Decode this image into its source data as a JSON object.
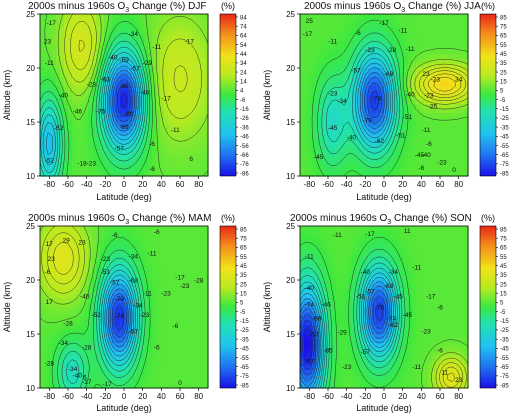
{
  "chart_data": [
    {
      "type": "heatmap",
      "title_pre": "2000s minus 1960s O",
      "title_sub": "3",
      "title_post": " Change (%) DJF",
      "xlabel": "Latitude (deg)",
      "ylabel": "Altitude (km)",
      "xlim": [
        -90,
        90
      ],
      "ylim": [
        10,
        25
      ],
      "xticks": [
        -80,
        -60,
        -40,
        -20,
        0,
        20,
        40,
        60,
        80
      ],
      "yticks": [
        10,
        15,
        20,
        25
      ],
      "colorbar": {
        "unit": "(%)",
        "ticks": [
          "84",
          "74",
          "64",
          "54",
          "44",
          "34",
          "24",
          "14",
          "4",
          "-6",
          "-16",
          "-26",
          "-36",
          "-46",
          "-56",
          "-66",
          "-76",
          "-86"
        ]
      },
      "features": [
        {
          "x": 0,
          "y": 17,
          "value": -88,
          "sx": 16,
          "sy": 3.2
        },
        {
          "x": -80,
          "y": 13,
          "value": -52,
          "sx": 10,
          "sy": 3
        },
        {
          "x": -45,
          "y": 22,
          "value": 18,
          "sx": 16,
          "sy": 3
        },
        {
          "x": 60,
          "y": 19,
          "value": 12,
          "sx": 25,
          "sy": 4
        }
      ],
      "contour_labels": [
        {
          "x": -78,
          "y": 24.2,
          "text": "-17"
        },
        {
          "x": -82,
          "y": 22.5,
          "text": "23"
        },
        {
          "x": -80,
          "y": 20.5,
          "text": "-11"
        },
        {
          "x": -12,
          "y": 21,
          "text": "-40"
        },
        {
          "x": 10,
          "y": 23.2,
          "text": "-34"
        },
        {
          "x": 0,
          "y": 20.8,
          "text": "-69"
        },
        {
          "x": 12,
          "y": 20,
          "text": "-57"
        },
        {
          "x": 25,
          "y": 20.5,
          "text": "-29"
        },
        {
          "x": 35,
          "y": 22,
          "text": "-11"
        },
        {
          "x": 70,
          "y": 22.5,
          "text": "-17"
        },
        {
          "x": -20,
          "y": 19,
          "text": "-63"
        },
        {
          "x": -35,
          "y": 18.5,
          "text": "-23"
        },
        {
          "x": -65,
          "y": 17.5,
          "text": "-40"
        },
        {
          "x": 0,
          "y": 18.4,
          "text": "-86"
        },
        {
          "x": 22,
          "y": 17.8,
          "text": "-46"
        },
        {
          "x": -50,
          "y": 16,
          "text": "-46"
        },
        {
          "x": -25,
          "y": 16,
          "text": "-75"
        },
        {
          "x": 5,
          "y": 15.8,
          "text": "-80"
        },
        {
          "x": 45,
          "y": 17.2,
          "text": "-17"
        },
        {
          "x": -70,
          "y": 14.5,
          "text": "-52"
        },
        {
          "x": 0,
          "y": 14.6,
          "text": "-69"
        },
        {
          "x": 55,
          "y": 14.3,
          "text": "-11"
        },
        {
          "x": -5,
          "y": 12.6,
          "text": "-57"
        },
        {
          "x": 30,
          "y": 13,
          "text": "-6"
        },
        {
          "x": -80,
          "y": 11.5,
          "text": "-52"
        },
        {
          "x": -45,
          "y": 11.2,
          "text": "-18"
        },
        {
          "x": -35,
          "y": 11.2,
          "text": "-23"
        },
        {
          "x": 30,
          "y": 10.7,
          "text": "-6"
        },
        {
          "x": 72,
          "y": 11.6,
          "text": "6"
        }
      ]
    },
    {
      "type": "heatmap",
      "title_pre": "2000s minus 1960s O",
      "title_sub": "3",
      "title_post": " Change (%) JJA",
      "xlabel": "Latitude (deg)",
      "ylabel": "Altitude (km)",
      "xlim": [
        -90,
        90
      ],
      "ylim": [
        10,
        25
      ],
      "xticks": [
        -80,
        -60,
        -40,
        -20,
        0,
        20,
        40,
        60,
        80
      ],
      "yticks": [
        10,
        15,
        20,
        25
      ],
      "colorbar": {
        "unit": "(%)",
        "ticks": [
          "85",
          "75",
          "65",
          "55",
          "45",
          "35",
          "25",
          "15",
          "5",
          "-5",
          "-15",
          "-25",
          "-35",
          "-45",
          "-55",
          "-65",
          "-75",
          "-85"
        ]
      },
      "features": [
        {
          "x": -10,
          "y": 17,
          "value": -82,
          "sx": 16,
          "sy": 3.2
        },
        {
          "x": 65,
          "y": 18.5,
          "value": 35,
          "sx": 22,
          "sy": 1.2
        },
        {
          "x": -55,
          "y": 15,
          "value": -35,
          "sx": 12,
          "sy": 3
        }
      ],
      "contour_labels": [
        {
          "x": -80,
          "y": 24.4,
          "text": "25"
        },
        {
          "x": -82,
          "y": 23.2,
          "text": "-17"
        },
        {
          "x": -28,
          "y": 23.3,
          "text": "-6"
        },
        {
          "x": 0,
          "y": 24.2,
          "text": "-17"
        },
        {
          "x": 20,
          "y": 23.5,
          "text": "-11"
        },
        {
          "x": -55,
          "y": 22.5,
          "text": "-11"
        },
        {
          "x": -15,
          "y": 21.7,
          "text": "-23"
        },
        {
          "x": 8,
          "y": 21.7,
          "text": "-28"
        },
        {
          "x": 28,
          "y": 21.8,
          "text": "-11"
        },
        {
          "x": -30,
          "y": 19.8,
          "text": "-57"
        },
        {
          "x": 5,
          "y": 19.5,
          "text": "-68"
        },
        {
          "x": 45,
          "y": 19.5,
          "text": "23"
        },
        {
          "x": 55,
          "y": 19,
          "text": "-23"
        },
        {
          "x": 80,
          "y": 19,
          "text": "34"
        },
        {
          "x": -55,
          "y": 17.7,
          "text": "-23"
        },
        {
          "x": -45,
          "y": 17,
          "text": "-34"
        },
        {
          "x": -8,
          "y": 17.2,
          "text": "-74"
        },
        {
          "x": 28,
          "y": 17.6,
          "text": "-40"
        },
        {
          "x": 48,
          "y": 17.5,
          "text": "-23"
        },
        {
          "x": 52,
          "y": 16.5,
          "text": "-25"
        },
        {
          "x": -18,
          "y": 15.2,
          "text": "-79"
        },
        {
          "x": 25,
          "y": 15.5,
          "text": "-51"
        },
        {
          "x": -55,
          "y": 14.5,
          "text": "-45"
        },
        {
          "x": -35,
          "y": 13.6,
          "text": "-40"
        },
        {
          "x": 45,
          "y": 14.3,
          "text": "-11"
        },
        {
          "x": -5,
          "y": 13.3,
          "text": "-62"
        },
        {
          "x": 18,
          "y": 13.8,
          "text": "-51"
        },
        {
          "x": 48,
          "y": 13,
          "text": "-6"
        },
        {
          "x": 38,
          "y": 12,
          "text": "-45"
        },
        {
          "x": 45,
          "y": 12,
          "text": "-40"
        },
        {
          "x": -70,
          "y": 11.8,
          "text": "-45"
        },
        {
          "x": 62,
          "y": 11.3,
          "text": "-23"
        },
        {
          "x": 40,
          "y": 10.8,
          "text": "-6"
        },
        {
          "x": 75,
          "y": 10.6,
          "text": "0"
        }
      ]
    },
    {
      "type": "heatmap",
      "title_pre": "2000s minus 1960s O",
      "title_sub": "3",
      "title_post": " Change (%) MAM",
      "xlabel": "Latitude (deg)",
      "ylabel": "Altitude (km)",
      "xlim": [
        -90,
        90
      ],
      "ylim": [
        10,
        25
      ],
      "xticks": [
        -80,
        -60,
        -40,
        -20,
        0,
        20,
        40,
        60,
        80
      ],
      "yticks": [
        10,
        15,
        20,
        25
      ],
      "colorbar": {
        "unit": "(%)",
        "ticks": [
          "85",
          "75",
          "65",
          "55",
          "45",
          "35",
          "25",
          "15",
          "5",
          "-5",
          "-15",
          "-25",
          "-35",
          "-45",
          "-55",
          "-65",
          "-75",
          "-85"
        ]
      },
      "features": [
        {
          "x": -5,
          "y": 16.5,
          "value": -84,
          "sx": 14,
          "sy": 3.2
        },
        {
          "x": -65,
          "y": 22,
          "value": 22,
          "sx": 18,
          "sy": 2.5
        },
        {
          "x": -55,
          "y": 11.5,
          "value": -35,
          "sx": 12,
          "sy": 2
        }
      ],
      "contour_labels": [
        {
          "x": -80,
          "y": 23.4,
          "text": "17"
        },
        {
          "x": -62,
          "y": 23.7,
          "text": "29"
        },
        {
          "x": -45,
          "y": 23.5,
          "text": "23"
        },
        {
          "x": -10,
          "y": 24.2,
          "text": "-6"
        },
        {
          "x": 35,
          "y": 24.5,
          "text": "-6"
        },
        {
          "x": -78,
          "y": 22,
          "text": "23"
        },
        {
          "x": -20,
          "y": 22,
          "text": "-23"
        },
        {
          "x": 10,
          "y": 22.2,
          "text": "-34"
        },
        {
          "x": 30,
          "y": 22.5,
          "text": "-11"
        },
        {
          "x": -82,
          "y": 20.8,
          "text": "-6"
        },
        {
          "x": -20,
          "y": 20.8,
          "text": "-51"
        },
        {
          "x": -10,
          "y": 19.8,
          "text": "-57"
        },
        {
          "x": 10,
          "y": 20,
          "text": "-68"
        },
        {
          "x": 60,
          "y": 20.3,
          "text": "-17"
        },
        {
          "x": 65,
          "y": 19.5,
          "text": "-23"
        },
        {
          "x": 80,
          "y": 20,
          "text": "-28"
        },
        {
          "x": -80,
          "y": 18,
          "text": "17"
        },
        {
          "x": -42,
          "y": 18.5,
          "text": "-40"
        },
        {
          "x": -5,
          "y": 18.3,
          "text": "-79"
        },
        {
          "x": 25,
          "y": 18.8,
          "text": "-11"
        },
        {
          "x": 45,
          "y": 18.8,
          "text": "-23"
        },
        {
          "x": -30,
          "y": 16.8,
          "text": "-52"
        },
        {
          "x": -5,
          "y": 16.7,
          "text": "-74"
        },
        {
          "x": 15,
          "y": 17.7,
          "text": "-34"
        },
        {
          "x": 22,
          "y": 16.8,
          "text": "-23"
        },
        {
          "x": -60,
          "y": 16,
          "text": "-28"
        },
        {
          "x": 10,
          "y": 15.3,
          "text": "-57"
        },
        {
          "x": 55,
          "y": 15.8,
          "text": "-6"
        },
        {
          "x": -65,
          "y": 14.2,
          "text": "-34"
        },
        {
          "x": -40,
          "y": 13.8,
          "text": "-28"
        },
        {
          "x": 35,
          "y": 13.8,
          "text": "-6"
        },
        {
          "x": -80,
          "y": 12.3,
          "text": "-28"
        },
        {
          "x": -55,
          "y": 11.8,
          "text": "-34"
        },
        {
          "x": -50,
          "y": 11.2,
          "text": "-40"
        },
        {
          "x": -42,
          "y": 11,
          "text": "6"
        },
        {
          "x": -40,
          "y": 10.6,
          "text": "-17"
        },
        {
          "x": -18,
          "y": 10.4,
          "text": "-17"
        },
        {
          "x": 60,
          "y": 10.5,
          "text": "0"
        }
      ]
    },
    {
      "type": "heatmap",
      "title_pre": "2000s minus 1960s O",
      "title_sub": "3",
      "title_post": " Change (%)  SON",
      "xlabel": "Latitude (deg)",
      "ylabel": "Altitude (km)",
      "xlim": [
        -90,
        90
      ],
      "ylim": [
        10,
        25
      ],
      "xticks": [
        -80,
        -60,
        -40,
        -20,
        0,
        20,
        40,
        60,
        80
      ],
      "yticks": [
        10,
        15,
        20,
        25
      ],
      "colorbar": {
        "unit": "(%)",
        "ticks": [
          "85",
          "75",
          "65",
          "55",
          "45",
          "35",
          "25",
          "15",
          "5",
          "-5",
          "-15",
          "-25",
          "-35",
          "-45",
          "-55",
          "-65",
          "-75",
          "-85"
        ]
      },
      "features": [
        {
          "x": -82,
          "y": 14,
          "value": -92,
          "sx": 13,
          "sy": 4
        },
        {
          "x": -5,
          "y": 17,
          "value": -82,
          "sx": 14,
          "sy": 3
        },
        {
          "x": 72,
          "y": 11,
          "value": 25,
          "sx": 12,
          "sy": 1.3
        }
      ],
      "contour_labels": [
        {
          "x": -80,
          "y": 22.2,
          "text": "-11"
        },
        {
          "x": -50,
          "y": 24.2,
          "text": "-11"
        },
        {
          "x": -15,
          "y": 24.3,
          "text": "-17"
        },
        {
          "x": 25,
          "y": 24.6,
          "text": "11"
        },
        {
          "x": -20,
          "y": 20.8,
          "text": "-40"
        },
        {
          "x": 10,
          "y": 20.8,
          "text": "-34"
        },
        {
          "x": 35,
          "y": 21.2,
          "text": "-11"
        },
        {
          "x": -80,
          "y": 19.3,
          "text": "-40"
        },
        {
          "x": -15,
          "y": 19,
          "text": "-57"
        },
        {
          "x": 5,
          "y": 19.5,
          "text": "-68"
        },
        {
          "x": -25,
          "y": 18.5,
          "text": "-51"
        },
        {
          "x": 15,
          "y": 18.5,
          "text": "-45"
        },
        {
          "x": 50,
          "y": 18.5,
          "text": "-17"
        },
        {
          "x": -80,
          "y": 17.8,
          "text": "-74"
        },
        {
          "x": -62,
          "y": 17.8,
          "text": "-46"
        },
        {
          "x": -5,
          "y": 17.5,
          "text": "-79"
        },
        {
          "x": 60,
          "y": 17.5,
          "text": "-6"
        },
        {
          "x": -72,
          "y": 16.5,
          "text": "-68"
        },
        {
          "x": 8,
          "y": 16.5,
          "text": "-74"
        },
        {
          "x": 10,
          "y": 15.9,
          "text": "-62"
        },
        {
          "x": 25,
          "y": 16.8,
          "text": "-45"
        },
        {
          "x": -75,
          "y": 15,
          "text": "-57"
        },
        {
          "x": -45,
          "y": 15.2,
          "text": "-29"
        },
        {
          "x": 45,
          "y": 15.3,
          "text": "-23"
        },
        {
          "x": -60,
          "y": 13.5,
          "text": "-85"
        },
        {
          "x": -20,
          "y": 13.4,
          "text": "-57"
        },
        {
          "x": 60,
          "y": 13.5,
          "text": "-6"
        },
        {
          "x": -80,
          "y": 12.5,
          "text": "-57"
        },
        {
          "x": -40,
          "y": 12,
          "text": "-23"
        },
        {
          "x": 35,
          "y": 12,
          "text": "-11"
        },
        {
          "x": 65,
          "y": 11.5,
          "text": "11"
        },
        {
          "x": 80,
          "y": 10.8,
          "text": "23"
        }
      ]
    }
  ]
}
